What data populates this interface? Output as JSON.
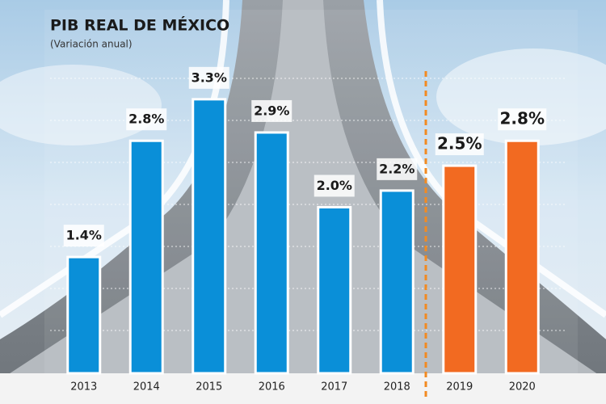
{
  "chart_data": {
    "type": "bar",
    "title": "PIB REAL DE MÉXICO",
    "subtitle": "(Variación anual)",
    "categories": [
      "2013",
      "2014",
      "2015",
      "2016",
      "2017",
      "2018",
      "2019",
      "2020"
    ],
    "values": [
      1.4,
      2.8,
      3.3,
      2.9,
      2.0,
      2.2,
      2.5,
      2.8
    ],
    "value_labels": [
      "1.4%",
      "2.8%",
      "3.3%",
      "2.9%",
      "2.0%",
      "2.2%",
      "2.5%",
      "2.8%"
    ],
    "colors": [
      "#0a8fd8",
      "#0a8fd8",
      "#0a8fd8",
      "#0a8fd8",
      "#0a8fd8",
      "#0a8fd8",
      "#f26a21",
      "#f26a21"
    ],
    "ylim": [
      0,
      3.6
    ]
  }
}
